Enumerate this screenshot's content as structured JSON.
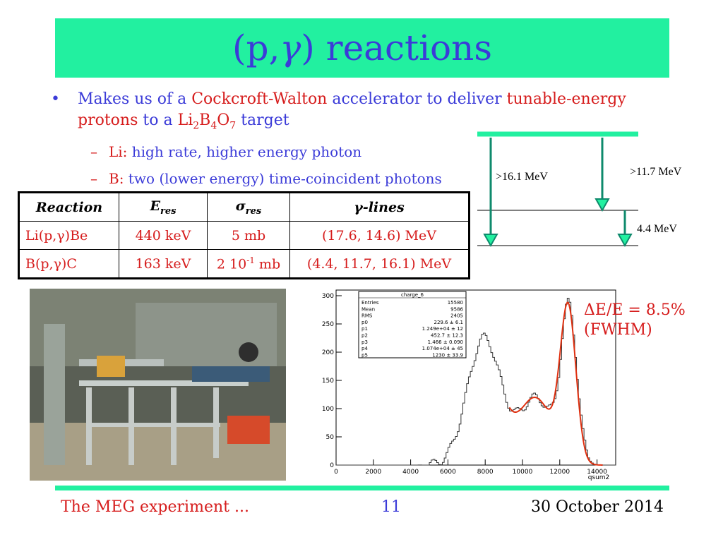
{
  "title": {
    "prefix": "(p,",
    "gamma": "γ",
    "suffix": ") reactions"
  },
  "bullet": {
    "p1": "Makes us of a ",
    "cw": "Cockcroft-Walton",
    "p2": " accelerator to deliver ",
    "tunable": "tunable-energy protons",
    "p3": " to a ",
    "target_li": "Li",
    "target_li_sub": "2",
    "target_b": "B",
    "target_b_sub": "4",
    "target_o": "O",
    "target_o_sub": "7",
    "p4": " target"
  },
  "subbullets": [
    {
      "dash": "–",
      "label": "Li:",
      "text": " high rate, higher energy photon"
    },
    {
      "dash": "–",
      "label": "B:",
      "text": " two (lower energy) time-coincident photons"
    }
  ],
  "table": {
    "headers": {
      "reaction": "Reaction",
      "eres_main": "E",
      "eres_sub": "res",
      "sigma_main": "σ",
      "sigma_sub": "res",
      "lines_gamma": "γ",
      "lines_rest": "-lines"
    },
    "rows": [
      {
        "reaction": "Li(p,γ)Be",
        "eres": "440 keV",
        "sigma": "5 mb",
        "lines": "(17.6,  14.6) MeV"
      },
      {
        "reaction": "B(p,γ)C",
        "eres": "163 keV",
        "sigma_pre": "2 10",
        "sigma_exp": "-1",
        "sigma_post": " mb",
        "lines": "(4.4,  11.7, 16.1) MeV"
      }
    ]
  },
  "level_diagram": {
    "label_161": ">16.1 MeV",
    "label_117": ">11.7 MeV",
    "label_44": "4.4 MeV",
    "color": "#0e8a6c",
    "top_line_color": "#22f0a0"
  },
  "spectrum": {
    "stats_title": "charge_6",
    "stats": [
      {
        "k": "Entries",
        "v": "15580"
      },
      {
        "k": "Mean",
        "v": "9586"
      },
      {
        "k": "RMS",
        "v": "2405"
      },
      {
        "k": "p0",
        "v": "229.6 ± 6.1"
      },
      {
        "k": "p1",
        "v": "1.249e+04 ± 12"
      },
      {
        "k": "p2",
        "v": "452.7 ± 12.3"
      },
      {
        "k": "p3",
        "v": "1.466 ± 0.090"
      },
      {
        "k": "p4",
        "v": "1.074e+04 ± 45"
      },
      {
        "k": "p5",
        "v": "1230 ± 33.9"
      }
    ],
    "xlabel": "qsum2",
    "x_ticks": [
      "0",
      "2000",
      "4000",
      "6000",
      "8000",
      "10000",
      "12000",
      "14000"
    ],
    "y_ticks": [
      "0",
      "50",
      "100",
      "150",
      "200",
      "250",
      "300"
    ],
    "fit_color": "#e03010"
  },
  "resolution": {
    "line1": "ΔE/E = 8.5%",
    "line2": "(FWHM)"
  },
  "photo": {
    "description_icon": "photo-icon"
  },
  "footer": {
    "left": "The MEG experiment ...",
    "page": "11",
    "date": "30 October 2014"
  },
  "colors": {
    "accent": "#22f0a0",
    "blue_text": "#3b3bd8",
    "red_text": "#d61c1c"
  }
}
